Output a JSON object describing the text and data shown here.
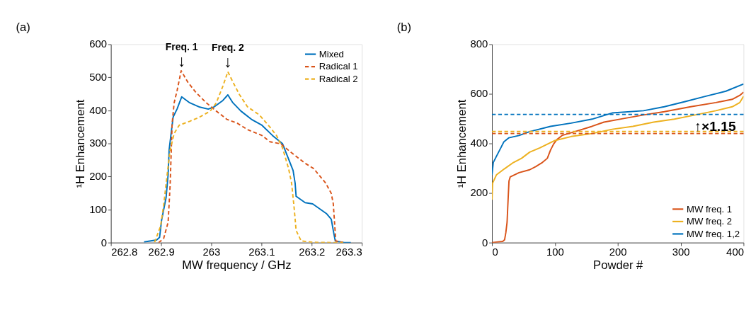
{
  "chart_data": [
    {
      "type": "line",
      "title": "(a)",
      "xlabel": "MW frequency / GHz",
      "ylabel": "¹H Enhancement",
      "xlim": [
        262.8,
        263.3
      ],
      "xticks": [
        262.8,
        262.9,
        263,
        263.1,
        263.2,
        263.3
      ],
      "ylim": [
        0,
        600
      ],
      "yticks": [
        0,
        100,
        200,
        300,
        400,
        500,
        600
      ],
      "grid": false,
      "legend": "top right",
      "marker": "none",
      "series": [
        {
          "name": "Mixed",
          "color": "#0072bd",
          "line_style": "solid",
          "x": [
            262.866,
            262.891,
            262.897,
            262.901,
            262.91,
            262.914,
            262.916,
            262.92,
            262.924,
            262.932,
            262.941,
            262.957,
            262.977,
            262.994,
            263.006,
            263.023,
            263.033,
            263.043,
            263.059,
            263.08,
            263.101,
            263.122,
            263.142,
            263.163,
            263.167,
            263.169,
            263.187,
            263.202,
            263.216,
            263.23,
            263.239,
            263.243,
            263.247,
            263.265,
            263.278
          ],
          "values": [
            2,
            8,
            16,
            68,
            137,
            206,
            281,
            331,
            380,
            405,
            441,
            423,
            410,
            404,
            411,
            430,
            447,
            423,
            398,
            373,
            355,
            324,
            299,
            218,
            180,
            140,
            121,
            117,
            102,
            87,
            71,
            37,
            5,
            0,
            0
          ]
        },
        {
          "name": "Radical 1",
          "color": "#d95319",
          "line_style": "dashed",
          "x": [
            262.895,
            262.905,
            262.914,
            262.918,
            262.922,
            262.926,
            262.932,
            262.94,
            262.953,
            262.969,
            262.99,
            263.01,
            263.031,
            263.052,
            263.072,
            263.101,
            263.117,
            263.138,
            263.158,
            263.187,
            263.204,
            263.216,
            263.228,
            263.239,
            263.243,
            263.245,
            263.248,
            263.262
          ],
          "values": [
            0,
            12,
            62,
            174,
            361,
            423,
            461,
            520,
            486,
            455,
            423,
            398,
            373,
            361,
            342,
            324,
            305,
            299,
            274,
            240,
            224,
            202,
            180,
            149,
            118,
            74,
            5,
            1
          ]
        },
        {
          "name": "Radical 2",
          "color": "#edb120",
          "line_style": "dashed",
          "x": [
            262.887,
            262.899,
            262.905,
            262.912,
            262.918,
            262.926,
            262.936,
            262.957,
            262.977,
            262.998,
            263.01,
            263.023,
            263.033,
            263.043,
            263.056,
            263.072,
            263.096,
            263.117,
            263.13,
            263.142,
            263.154,
            263.16,
            263.165,
            263.169,
            263.179,
            263.203,
            263.244,
            263.265
          ],
          "values": [
            1,
            50,
            112,
            205,
            280,
            330,
            355,
            367,
            380,
            398,
            423,
            473,
            517,
            486,
            448,
            411,
            386,
            349,
            324,
            286,
            224,
            180,
            106,
            37,
            5,
            1,
            0,
            0
          ]
        }
      ],
      "annotations": [
        {
          "text": "Freq. 1",
          "x": 262.941,
          "y": 520
        },
        {
          "text": "↓",
          "x": 262.941,
          "y": 520
        },
        {
          "text": "Freq. 2",
          "x": 263.033,
          "y": 517
        },
        {
          "text": "↓",
          "x": 263.033,
          "y": 517
        }
      ]
    },
    {
      "type": "line",
      "title": "(b)",
      "xlabel": "Powder #",
      "ylabel": "¹H Enhancement",
      "xlim": [
        0,
        400
      ],
      "xticks": [
        0,
        100,
        200,
        300,
        400
      ],
      "ylim": [
        0,
        800
      ],
      "yticks": [
        0,
        200,
        400,
        600,
        800
      ],
      "grid": false,
      "legend": "bottom right",
      "marker": "none",
      "series": [
        {
          "name": "MW freq. 1",
          "color": "#d95319",
          "line_style": "solid",
          "x": [
            0,
            17,
            20,
            22,
            24,
            25,
            27,
            29,
            43,
            60,
            70,
            80,
            88,
            93,
            98,
            103,
            112,
            132,
            159,
            178,
            208,
            241,
            274,
            316,
            356,
            382,
            394,
            400
          ],
          "values": [
            0,
            5,
            11,
            40,
            82,
            140,
            248,
            265,
            282,
            294,
            307,
            323,
            340,
            373,
            398,
            415,
            433,
            448,
            469,
            486,
            500,
            515,
            528,
            548,
            565,
            578,
            594,
            607
          ]
        },
        {
          "name": "MW freq. 2",
          "color": "#edb120",
          "line_style": "solid",
          "x": [
            0,
            1,
            7,
            20,
            34,
            47,
            60,
            76,
            99,
            126,
            159,
            191,
            224,
            257,
            290,
            323,
            356,
            382,
            394,
            400
          ],
          "values": [
            173,
            240,
            273,
            298,
            323,
            340,
            365,
            382,
            411,
            428,
            440,
            457,
            469,
            486,
            498,
            515,
            532,
            548,
            565,
            590
          ]
        },
        {
          "name": "MW freq. 1,2",
          "color": "#0072bd",
          "line_style": "solid",
          "x": [
            0,
            2,
            7,
            14,
            19,
            27,
            43,
            60,
            93,
            126,
            159,
            191,
            241,
            274,
            307,
            339,
            372,
            400
          ],
          "values": [
            273,
            323,
            348,
            382,
            407,
            423,
            432,
            448,
            469,
            482,
            498,
            523,
            532,
            548,
            569,
            590,
            611,
            640
          ]
        }
      ],
      "ref_lines": [
        {
          "axis": "y",
          "value": 440,
          "color": "#d95319",
          "line_style": "dashed"
        },
        {
          "axis": "y",
          "value": 448,
          "color": "#edb120",
          "line_style": "dashed"
        },
        {
          "axis": "y",
          "value": 517,
          "color": "#0072bd",
          "line_style": "dashed"
        }
      ],
      "annotations": [
        {
          "text": "↑×1.15",
          "x": 330,
          "y": 448
        }
      ]
    }
  ]
}
